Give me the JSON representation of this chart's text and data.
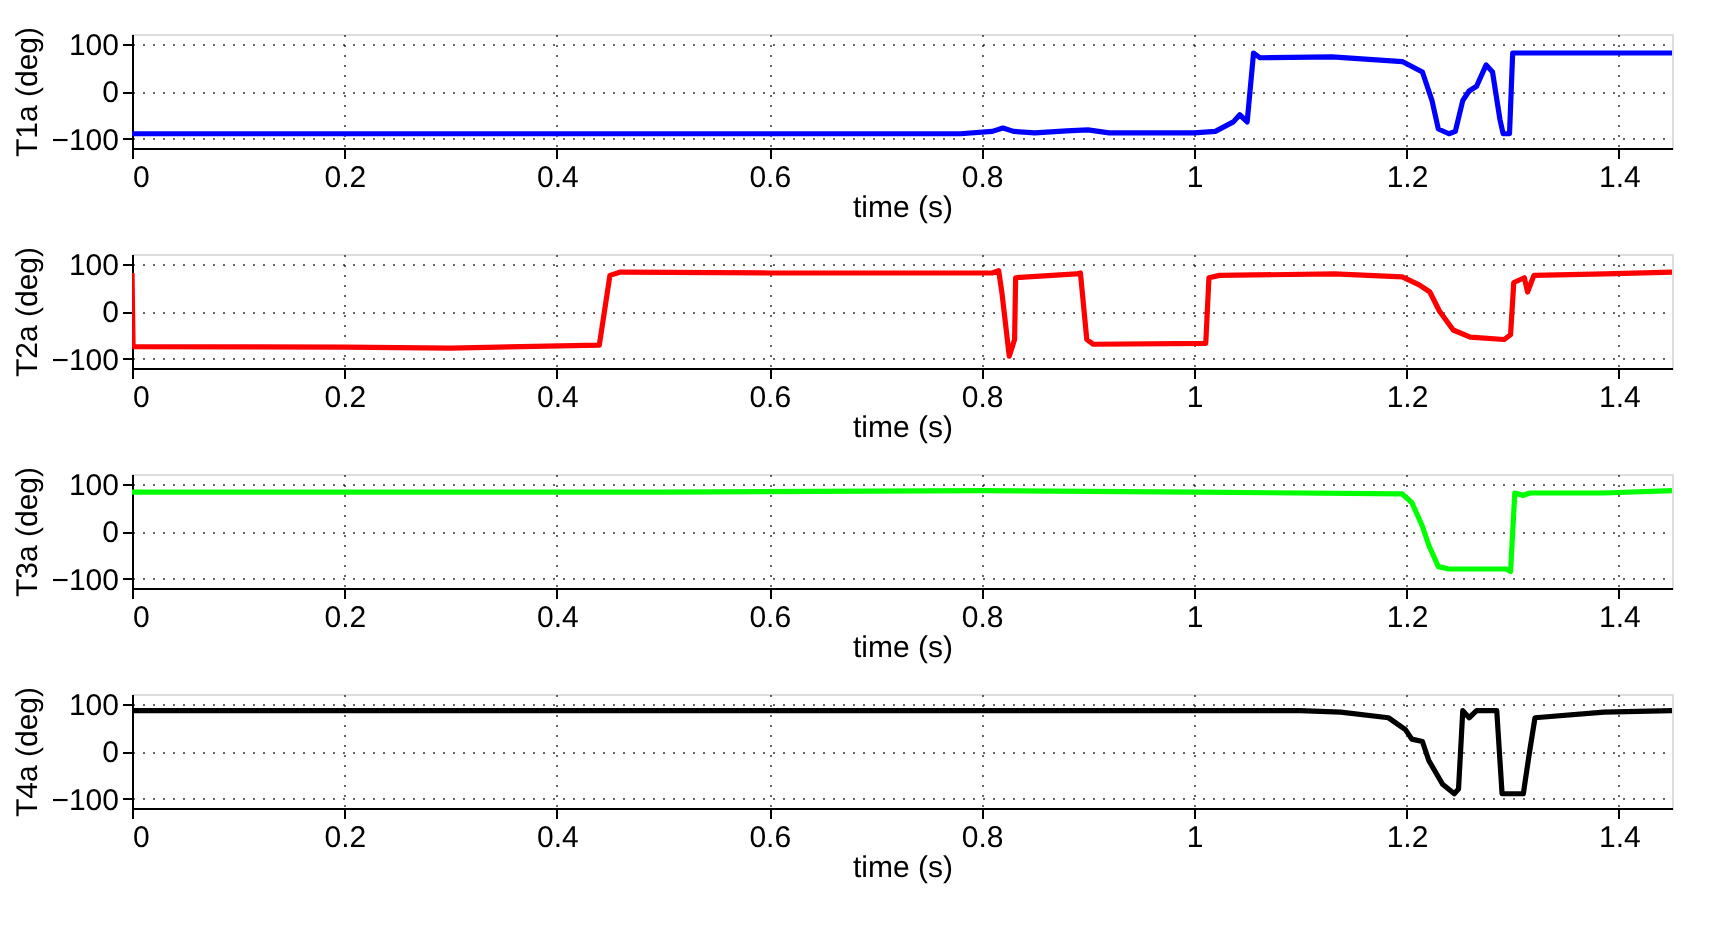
{
  "chart_data": [
    {
      "type": "line",
      "xlabel": "time (s)",
      "ylabel": "T1a (deg)",
      "xlim": [
        0,
        1.45
      ],
      "xticks": [
        0,
        0.2,
        0.4,
        0.6,
        0.8,
        1,
        1.2,
        1.4
      ],
      "ylim": [
        -120,
        120
      ],
      "yticks": [
        -100,
        0,
        100
      ],
      "grid": true,
      "series": [
        {
          "color": "#0000ff",
          "x": [
            0,
            0.78,
            0.81,
            0.82,
            0.83,
            0.85,
            0.88,
            0.9,
            0.92,
            1.0,
            1.02,
            1.037,
            1.043,
            1.05,
            1.056,
            1.062,
            1.13,
            1.196,
            1.215,
            1.224,
            1.23,
            1.24,
            1.246,
            1.253,
            1.259,
            1.266,
            1.275,
            1.281,
            1.288,
            1.291,
            1.297,
            1.3,
            1.323,
            1.386,
            1.45
          ],
          "values": [
            -90,
            -90,
            -85,
            -78,
            -85,
            -88,
            -84,
            -82,
            -88,
            -88,
            -85,
            -65,
            -50,
            -65,
            80,
            70,
            72,
            62,
            40,
            -20,
            -80,
            -90,
            -85,
            -20,
            0,
            10,
            55,
            40,
            -60,
            -90,
            -90,
            80,
            80,
            80,
            80
          ]
        }
      ]
    },
    {
      "type": "line",
      "xlabel": "time (s)",
      "ylabel": "T2a (deg)",
      "xlim": [
        0,
        1.45
      ],
      "xticks": [
        0,
        0.2,
        0.4,
        0.6,
        0.8,
        1,
        1.2,
        1.4
      ],
      "ylim": [
        -120,
        120
      ],
      "yticks": [
        -100,
        0,
        100
      ],
      "grid": true,
      "series": [
        {
          "color": "#ff0000",
          "x": [
            0,
            0.001,
            0.2,
            0.3,
            0.44,
            0.45,
            0.46,
            0.6,
            0.81,
            0.816,
            0.819,
            0.826,
            0.831,
            0.832,
            0.889,
            0.893,
            0.899,
            0.905,
            1.011,
            1.014,
            1.024,
            1.132,
            1.196,
            1.212,
            1.222,
            1.231,
            1.244,
            1.26,
            1.292,
            1.298,
            1.301,
            1.311,
            1.314,
            1.32,
            1.387,
            1.45
          ],
          "values": [
            80,
            -75,
            -76,
            -78,
            -72,
            75,
            82,
            80,
            80,
            85,
            40,
            -95,
            -60,
            70,
            78,
            80,
            -60,
            -70,
            -68,
            70,
            75,
            78,
            72,
            55,
            40,
            0,
            -40,
            -55,
            -60,
            -50,
            60,
            70,
            40,
            75,
            78,
            82
          ]
        }
      ]
    },
    {
      "type": "line",
      "xlabel": "time (s)",
      "ylabel": "T3a (deg)",
      "xlim": [
        0,
        1.45
      ],
      "xticks": [
        0,
        0.2,
        0.4,
        0.6,
        0.8,
        1,
        1.2,
        1.4
      ],
      "ylim": [
        -120,
        120
      ],
      "yticks": [
        -100,
        0,
        100
      ],
      "grid": true,
      "series": [
        {
          "color": "#00ff00",
          "x": [
            0,
            0.5,
            0.8,
            1.0,
            1.196,
            1.205,
            1.215,
            1.221,
            1.23,
            1.24,
            1.294,
            1.298,
            1.302,
            1.31,
            1.316,
            1.386,
            1.45
          ],
          "values": [
            82,
            82,
            85,
            82,
            78,
            60,
            10,
            -30,
            -75,
            -80,
            -80,
            -85,
            80,
            75,
            80,
            80,
            85
          ]
        }
      ]
    },
    {
      "type": "line",
      "xlabel": "time (s)",
      "ylabel": "T4a (deg)",
      "xlim": [
        0,
        1.45
      ],
      "xticks": [
        0,
        0.2,
        0.4,
        0.6,
        0.8,
        1,
        1.2,
        1.4
      ],
      "ylim": [
        -120,
        120
      ],
      "yticks": [
        -100,
        0,
        100
      ],
      "grid": true,
      "series": [
        {
          "color": "#000000",
          "x": [
            0,
            0.5,
            1.1,
            1.138,
            1.183,
            1.199,
            1.205,
            1.215,
            1.221,
            1.234,
            1.245,
            1.249,
            1.253,
            1.259,
            1.266,
            1.285,
            1.29,
            1.31,
            1.316,
            1.321,
            1.386,
            1.45
          ],
          "values": [
            85,
            85,
            85,
            82,
            70,
            45,
            25,
            20,
            -20,
            -70,
            -90,
            -80,
            85,
            70,
            85,
            85,
            -90,
            -90,
            0,
            70,
            82,
            85
          ]
        }
      ]
    }
  ]
}
